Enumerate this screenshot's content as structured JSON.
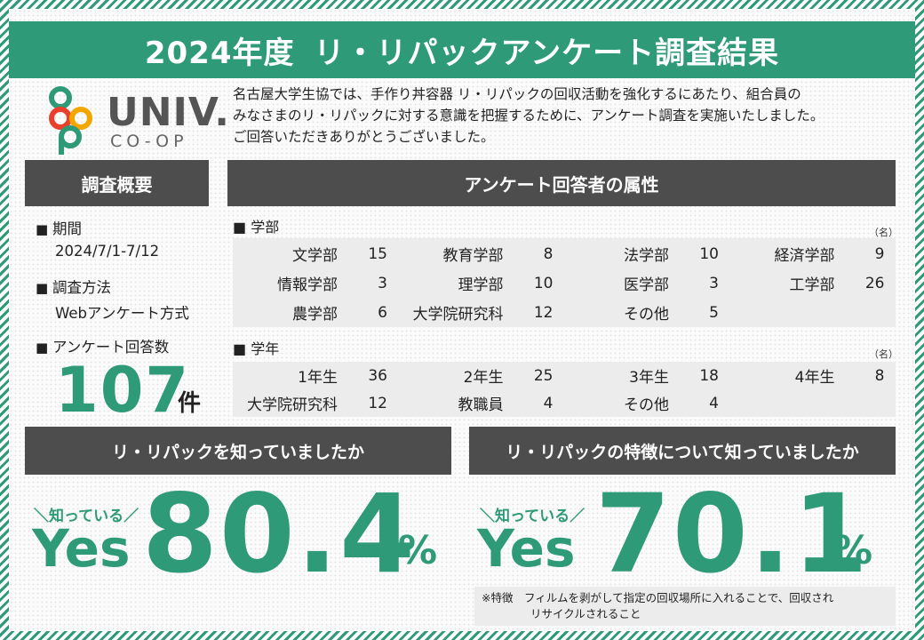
{
  "header": {
    "year_title": "2024年度",
    "main_title": "リ・リパックアンケート調査結果"
  },
  "logo": {
    "word": "UNIV.",
    "sub": "CO-OP",
    "colors": [
      "#f2a600",
      "#e8402a",
      "#2e9a78",
      "#2e9a78"
    ]
  },
  "intro": {
    "line1": "名古屋大学生協では、手作り丼容器 リ・リパックの回収活動を強化するにあたり、組合員の",
    "line2": "みなさまのリ・リパックに対する意識を把握するために、アンケート調査を実施いたしました。",
    "line3": "ご回答いただきありがとうございました。"
  },
  "overview": {
    "heading": "調査概要",
    "period_label": "期間",
    "period_value": "2024/7/1-7/12",
    "method_label": "調査方法",
    "method_value": "Webアンケート方式",
    "responses_label": "アンケート回答数",
    "responses_count": "107",
    "responses_unit": "件"
  },
  "attributes": {
    "heading": "アンケート回答者の属性",
    "unit": "（名）",
    "faculty": {
      "label": "学部",
      "rows": [
        [
          [
            "文学部",
            "15"
          ],
          [
            "教育学部",
            "8"
          ],
          [
            "法学部",
            "10"
          ],
          [
            "経済学部",
            "9"
          ]
        ],
        [
          [
            "情報学部",
            "3"
          ],
          [
            "理学部",
            "10"
          ],
          [
            "医学部",
            "3"
          ],
          [
            "工学部",
            "26"
          ]
        ],
        [
          [
            "農学部",
            "6"
          ],
          [
            "大学院研究科",
            "12"
          ],
          [
            "その他",
            "5"
          ],
          [
            "",
            ""
          ]
        ]
      ]
    },
    "grade": {
      "label": "学年",
      "rows": [
        [
          [
            "1年生",
            "36"
          ],
          [
            "2年生",
            "25"
          ],
          [
            "3年生",
            "18"
          ],
          [
            "4年生",
            "8"
          ]
        ],
        [
          [
            "大学院研究科",
            "12"
          ],
          [
            "教職員",
            "4"
          ],
          [
            "その他",
            "4"
          ],
          [
            "",
            ""
          ]
        ]
      ]
    }
  },
  "q1": {
    "question": "リ・リパックを知っていましたか",
    "tag": "＼知っている／",
    "yes": "Yes",
    "value": "80.4",
    "unit": "%"
  },
  "q2": {
    "question": "リ・リパックの特徴について知っていましたか",
    "tag": "＼知っている／",
    "yes": "Yes",
    "value": "70.1",
    "unit": "%"
  },
  "note": {
    "line1": "※特徴　フィルムを剥がして指定の回収場所に入れることで、回収され",
    "line2": "リサイクルされること"
  }
}
